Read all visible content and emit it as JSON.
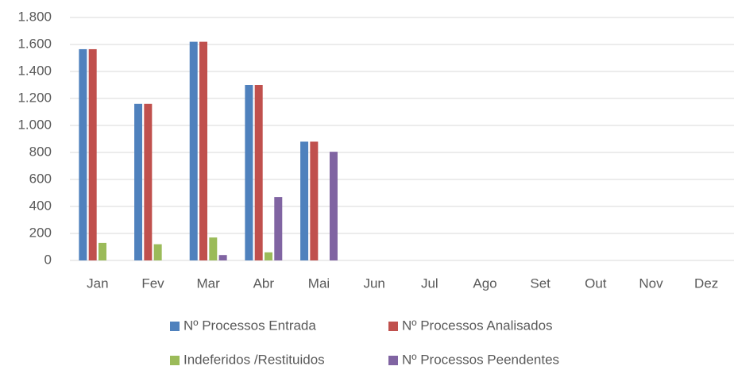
{
  "chart_data": {
    "type": "bar",
    "categories": [
      "Jan",
      "Fev",
      "Mar",
      "Abr",
      "Mai",
      "Jun",
      "Jul",
      "Ago",
      "Set",
      "Out",
      "Nov",
      "Dez"
    ],
    "series": [
      {
        "name": "Nº Processos Entrada",
        "color": "#4f81bd",
        "values": [
          1565,
          1160,
          1620,
          1300,
          880,
          null,
          null,
          null,
          null,
          null,
          null,
          null
        ]
      },
      {
        "name": "Nº Processos Analisados",
        "color": "#c0504d",
        "values": [
          1565,
          1160,
          1620,
          1300,
          880,
          null,
          null,
          null,
          null,
          null,
          null,
          null
        ]
      },
      {
        "name": "Indeferidos /Restituidos",
        "color": "#9bbb59",
        "values": [
          130,
          120,
          170,
          60,
          null,
          null,
          null,
          null,
          null,
          null,
          null,
          null
        ]
      },
      {
        "name": "Nº Processos Peendentes",
        "color": "#8064a2",
        "values": [
          null,
          null,
          40,
          470,
          805,
          null,
          null,
          null,
          null,
          null,
          null,
          null
        ]
      }
    ],
    "ylim": [
      0,
      1800
    ],
    "yticks": [
      0,
      200,
      400,
      600,
      800,
      {
        "value": 1000,
        "label": "1.000"
      },
      {
        "value": 1200,
        "label": "1.200"
      },
      {
        "value": 1400,
        "label": "1.400"
      },
      {
        "value": 1600,
        "label": "1.600"
      },
      {
        "value": 1800,
        "label": "1.800"
      }
    ],
    "grid": true,
    "legend": "bottom"
  }
}
